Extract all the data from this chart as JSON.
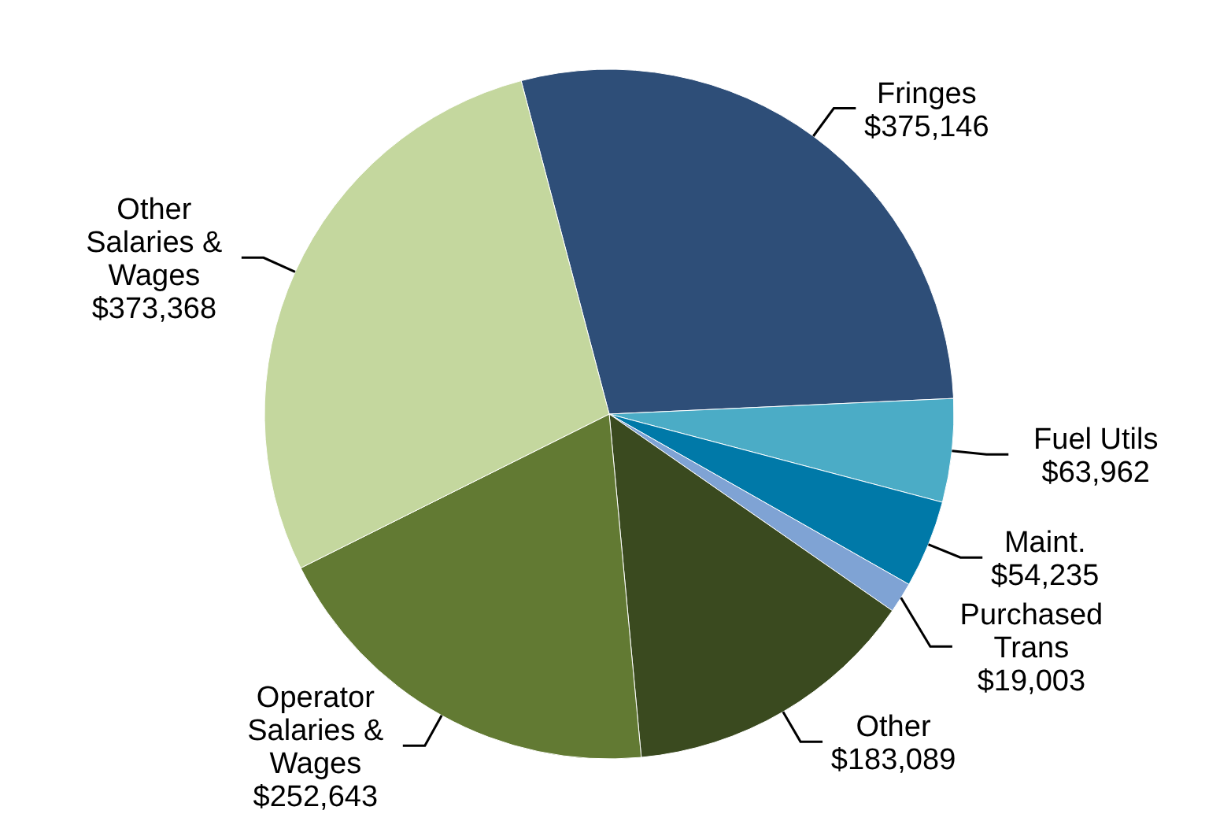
{
  "chart_data": {
    "type": "pie",
    "categories": [
      "Fringes",
      "Fuel Utils",
      "Maint.",
      "Purchased Trans",
      "Other",
      "Operator Salaries & Wages",
      "Other Salaries & Wages"
    ],
    "values": [
      375146,
      63962,
      54235,
      19003,
      183089,
      252643,
      373368
    ],
    "value_labels": [
      "$375,146",
      "$63,962",
      "$54,235",
      "$19,003",
      "$183,089",
      "$252,643",
      "$373,368"
    ],
    "colors": [
      "#2e4e78",
      "#4bacc6",
      "#0079a8",
      "#7fa3d4",
      "#3a4a1f",
      "#627a33",
      "#c4d79e"
    ]
  }
}
